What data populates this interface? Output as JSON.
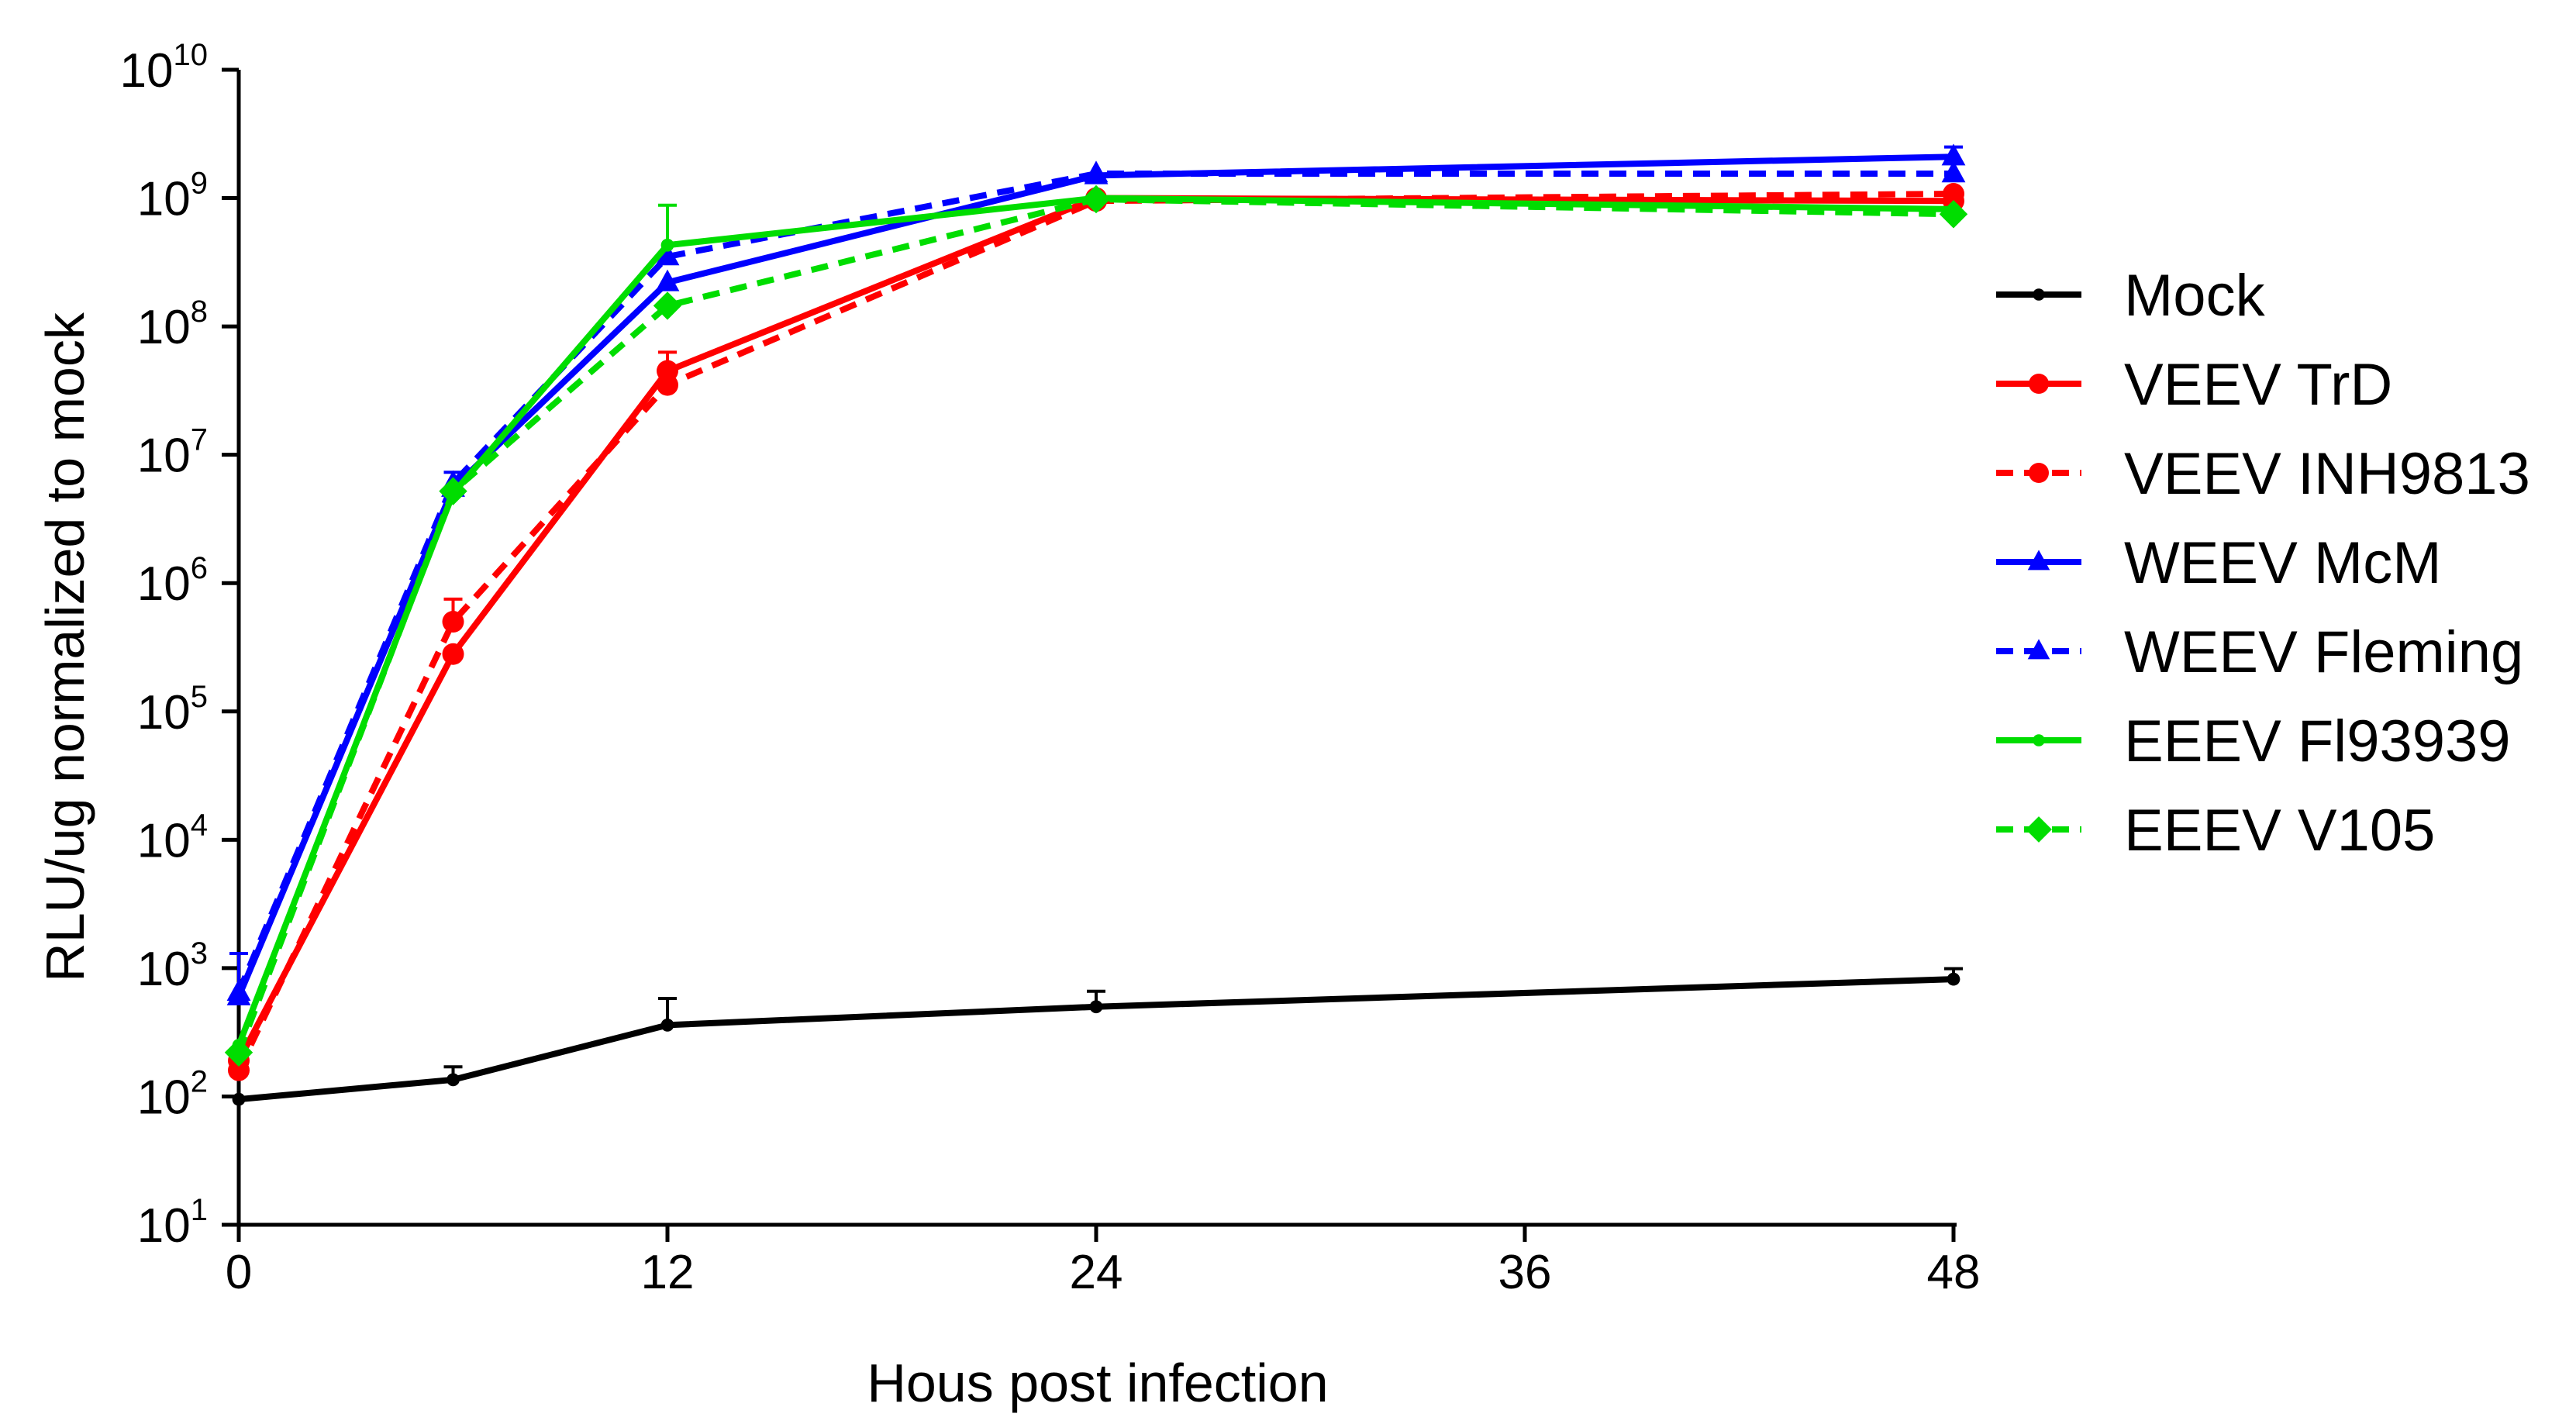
{
  "chart_data": {
    "type": "line",
    "title": "",
    "xlabel": "Hous post infection",
    "ylabel": "RLU/ug normalized to mock",
    "yscale": "log10",
    "xlim": [
      0,
      48
    ],
    "ylim": [
      10,
      10000000000
    ],
    "x_ticks": [
      "0",
      "12",
      "24",
      "36",
      "48"
    ],
    "y_ticks": [
      {
        "base": "10",
        "exp": "1"
      },
      {
        "base": "10",
        "exp": "2"
      },
      {
        "base": "10",
        "exp": "3"
      },
      {
        "base": "10",
        "exp": "4"
      },
      {
        "base": "10",
        "exp": "5"
      },
      {
        "base": "10",
        "exp": "6"
      },
      {
        "base": "10",
        "exp": "7"
      },
      {
        "base": "10",
        "exp": "8"
      },
      {
        "base": "10",
        "exp": "9"
      },
      {
        "base": "10",
        "exp": "10"
      }
    ],
    "legend_position": "right",
    "series": [
      {
        "name": "Mock",
        "color": "#000000",
        "dash": false,
        "marker": "plus",
        "x": [
          0,
          6,
          12,
          24,
          48
        ],
        "y": [
          95,
          135,
          360,
          500,
          820
        ],
        "err": [
          0,
          35,
          220,
          160,
          170
        ]
      },
      {
        "name": "VEEV TrD",
        "color": "#ff0000",
        "dash": false,
        "marker": "circle",
        "x": [
          0,
          6,
          12,
          24,
          48
        ],
        "y": [
          190,
          280000,
          45000000,
          1000000000,
          950000000
        ],
        "err": [
          0,
          0,
          18000000,
          0,
          0
        ]
      },
      {
        "name": "VEEV INH9813",
        "color": "#ff0000",
        "dash": true,
        "marker": "circle",
        "x": [
          0,
          6,
          12,
          24,
          48
        ],
        "y": [
          160,
          500000,
          35000000,
          950000000,
          1080000000
        ],
        "err": [
          0,
          250000,
          8000000,
          0,
          0
        ]
      },
      {
        "name": "WEEV McM",
        "color": "#0000ff",
        "dash": false,
        "marker": "triangle",
        "x": [
          0,
          6,
          12,
          24,
          48
        ],
        "y": [
          600,
          5500000,
          220000000,
          1500000000,
          2100000000
        ],
        "err": [
          700,
          1800000,
          0,
          0,
          400000000
        ]
      },
      {
        "name": "WEEV Fleming",
        "color": "#0000ff",
        "dash": true,
        "marker": "triangle",
        "x": [
          0,
          6,
          12,
          24,
          48
        ],
        "y": [
          650,
          6000000,
          350000000,
          1550000000,
          1550000000
        ],
        "err": [
          0,
          0,
          0,
          0,
          0
        ]
      },
      {
        "name": "EEEV Fl93939",
        "color": "#00dd00",
        "dash": false,
        "marker": "plus",
        "x": [
          0,
          6,
          12,
          24,
          48
        ],
        "y": [
          250,
          5000000,
          430000000,
          1000000000,
          820000000
        ],
        "err": [
          0,
          0,
          450000000,
          0,
          0
        ]
      },
      {
        "name": "EEEV V105",
        "color": "#00dd00",
        "dash": true,
        "marker": "diamond",
        "x": [
          0,
          6,
          12,
          24,
          48
        ],
        "y": [
          220,
          5200000,
          145000000,
          980000000,
          750000000
        ],
        "err": [
          0,
          0,
          0,
          0,
          0
        ]
      }
    ]
  }
}
